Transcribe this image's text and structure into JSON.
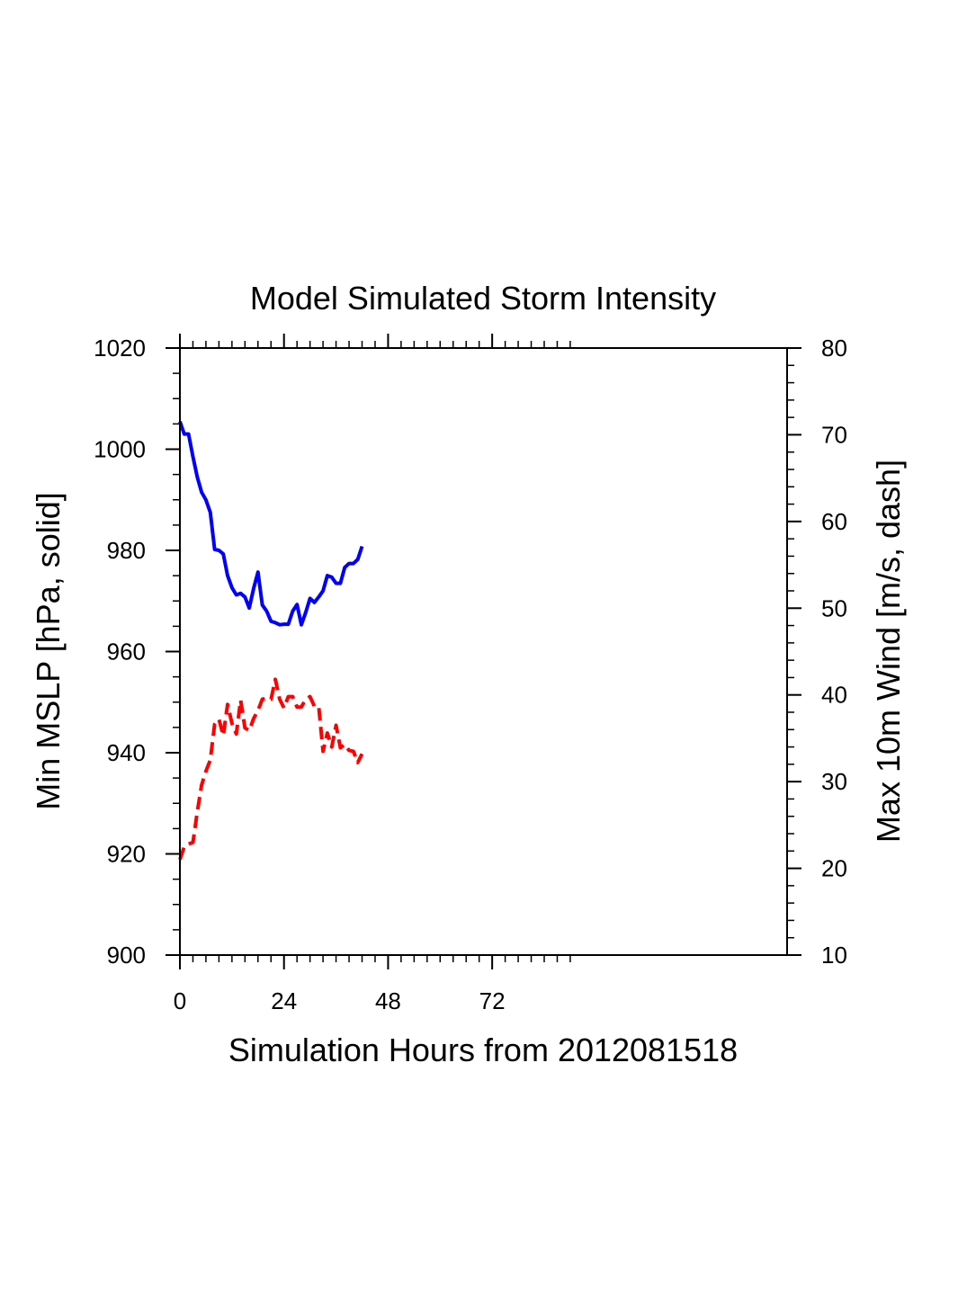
{
  "chart_data": {
    "type": "line",
    "title": "Model Simulated Storm Intensity",
    "xlabel": "Simulation Hours from 2012081518",
    "ylabel_left": "Min MSLP  [hPa, solid]",
    "ylabel_right": "Max 10m Wind  [m/s, dash]",
    "xlim": [
      0,
      140
    ],
    "ylim_left": [
      900,
      1020
    ],
    "ylim_right": [
      10,
      80
    ],
    "x_ticks": [
      0,
      24,
      48,
      72
    ],
    "x_tick_labels": [
      "0",
      "24",
      "48",
      "72"
    ],
    "y_left_ticks": [
      900,
      920,
      940,
      960,
      980,
      1000,
      1020
    ],
    "y_left_tick_labels": [
      "900",
      "920",
      "940",
      "960",
      "980",
      "1000",
      "1020"
    ],
    "y_right_ticks": [
      10,
      20,
      30,
      40,
      50,
      60,
      70,
      80
    ],
    "y_right_tick_labels": [
      "10",
      "20",
      "30",
      "40",
      "50",
      "60",
      "70",
      "80"
    ],
    "x_minor_tick_max": 90,
    "series": [
      {
        "axis": "left",
        "style": "solid",
        "color": "#0000ff",
        "x": [
          0,
          1,
          2,
          3,
          4,
          5,
          6,
          7,
          8,
          9,
          10,
          11,
          12,
          13,
          14,
          15,
          16,
          17,
          18,
          19,
          20,
          21,
          22,
          23,
          24,
          25,
          26,
          27,
          28,
          29,
          30,
          31,
          32,
          33,
          34,
          35,
          36,
          37,
          38,
          39,
          40,
          41,
          42
        ],
        "values": [
          1005.5,
          1003,
          1003,
          998.5,
          994.5,
          991.5,
          990,
          987.5,
          980.2,
          980,
          979.3,
          975,
          972.6,
          971.2,
          971.5,
          970.8,
          968.6,
          972.5,
          975.7,
          969.2,
          968,
          966,
          965.7,
          965.3,
          965.4,
          965.4,
          968,
          969.3,
          965.3,
          967.7,
          970.5,
          969.7,
          970.8,
          972,
          975,
          974.7,
          973.5,
          973.5,
          976.6,
          977.4,
          977.4,
          978.2,
          980.8
        ]
      },
      {
        "axis": "right",
        "style": "dash",
        "color": "#ff0000",
        "x": [
          0,
          1,
          2,
          3,
          4,
          5,
          6,
          7,
          8,
          9,
          10,
          11,
          12,
          13,
          14,
          15,
          16,
          17,
          18,
          19,
          20,
          21,
          22,
          23,
          24,
          25,
          26,
          27,
          28,
          29,
          30,
          31,
          32,
          33,
          34,
          35,
          36,
          37,
          38,
          39,
          40,
          41,
          42
        ],
        "values": [
          21,
          22.5,
          22.8,
          23,
          26.5,
          29.6,
          31.2,
          32.5,
          36.6,
          37.2,
          35.3,
          38.9,
          36.7,
          35.5,
          39.4,
          36.2,
          35.9,
          37.3,
          38.2,
          39.5,
          39.6,
          39.5,
          41.8,
          39.5,
          38.5,
          39.8,
          39.8,
          38.6,
          38.6,
          39.5,
          39.8,
          38.7,
          38.7,
          33.5,
          35.6,
          34,
          36.5,
          33.9,
          34.3,
          33.6,
          33.5,
          32.2,
          33.2
        ]
      }
    ]
  }
}
